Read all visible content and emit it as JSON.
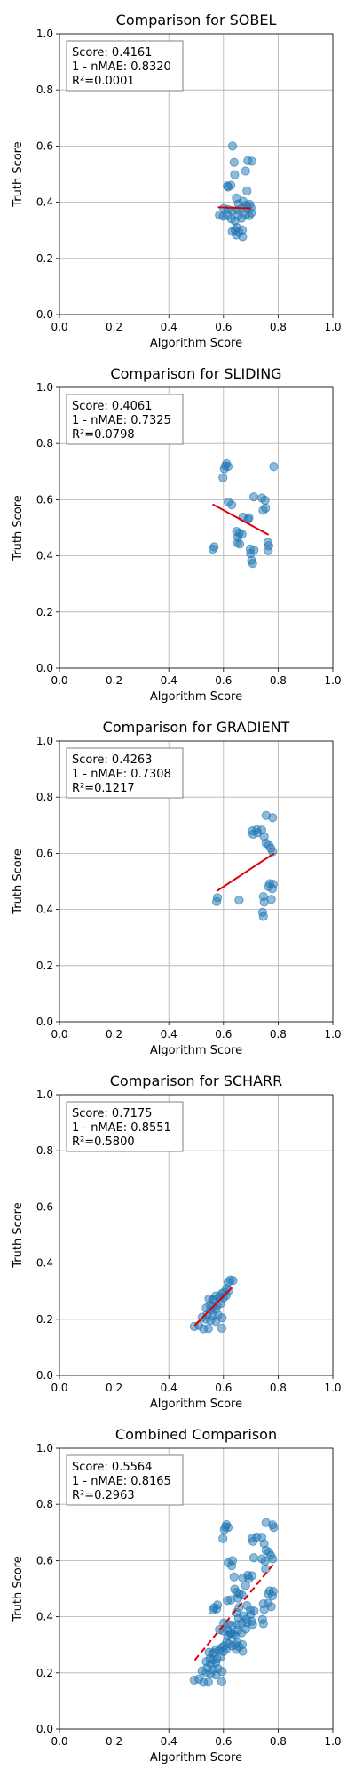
{
  "chart_data": [
    {
      "type": "scatter",
      "title": "Comparison for SOBEL",
      "xlabel": "Algorithm Score",
      "ylabel": "Truth Score",
      "xlim": [
        0,
        1
      ],
      "ylim": [
        0,
        1
      ],
      "xticks": [
        "0.0",
        "0.2",
        "0.4",
        "0.6",
        "0.8",
        "1.0"
      ],
      "yticks": [
        "0.0",
        "0.2",
        "0.4",
        "0.6",
        "0.8",
        "1.0"
      ],
      "grid": true,
      "stats": [
        "Score: 0.4161",
        "1 - nMAE: 0.8320",
        "R²=0.0001"
      ],
      "points": [
        [
          0.633,
          0.6
        ],
        [
          0.689,
          0.548
        ],
        [
          0.704,
          0.546
        ],
        [
          0.639,
          0.542
        ],
        [
          0.641,
          0.498
        ],
        [
          0.681,
          0.511
        ],
        [
          0.614,
          0.458
        ],
        [
          0.627,
          0.46
        ],
        [
          0.617,
          0.454
        ],
        [
          0.686,
          0.44
        ],
        [
          0.647,
          0.415
        ],
        [
          0.672,
          0.403
        ],
        [
          0.655,
          0.394
        ],
        [
          0.685,
          0.39
        ],
        [
          0.696,
          0.392
        ],
        [
          0.601,
          0.378
        ],
        [
          0.617,
          0.374
        ],
        [
          0.632,
          0.37
        ],
        [
          0.652,
          0.372
        ],
        [
          0.667,
          0.377
        ],
        [
          0.686,
          0.378
        ],
        [
          0.701,
          0.38
        ],
        [
          0.702,
          0.362
        ],
        [
          0.585,
          0.354
        ],
        [
          0.599,
          0.35
        ],
        [
          0.615,
          0.352
        ],
        [
          0.653,
          0.352
        ],
        [
          0.682,
          0.356
        ],
        [
          0.694,
          0.352
        ],
        [
          0.628,
          0.341
        ],
        [
          0.666,
          0.343
        ],
        [
          0.642,
          0.333
        ],
        [
          0.648,
          0.31
        ],
        [
          0.643,
          0.3
        ],
        [
          0.657,
          0.293
        ],
        [
          0.669,
          0.301
        ],
        [
          0.632,
          0.296
        ],
        [
          0.647,
          0.283
        ],
        [
          0.67,
          0.277
        ]
      ],
      "fit_line": {
        "x": [
          0.58,
          0.7
        ],
        "y": [
          0.382,
          0.378
        ],
        "style": "solid",
        "color": "#e00000"
      }
    },
    {
      "type": "scatter",
      "title": "Comparison for SLIDING",
      "xlabel": "Algorithm Score",
      "ylabel": "Truth Score",
      "xlim": [
        0,
        1
      ],
      "ylim": [
        0,
        1
      ],
      "xticks": [
        "0.0",
        "0.2",
        "0.4",
        "0.6",
        "0.8",
        "1.0"
      ],
      "yticks": [
        "0.0",
        "0.2",
        "0.4",
        "0.6",
        "0.8",
        "1.0"
      ],
      "grid": true,
      "stats": [
        "Score: 0.4061",
        "1 - nMAE: 0.7325",
        "R²=0.0798"
      ],
      "points": [
        [
          0.611,
          0.728
        ],
        [
          0.607,
          0.72
        ],
        [
          0.617,
          0.718
        ],
        [
          0.603,
          0.71
        ],
        [
          0.784,
          0.718
        ],
        [
          0.598,
          0.678
        ],
        [
          0.711,
          0.61
        ],
        [
          0.741,
          0.606
        ],
        [
          0.752,
          0.598
        ],
        [
          0.617,
          0.592
        ],
        [
          0.63,
          0.582
        ],
        [
          0.754,
          0.57
        ],
        [
          0.671,
          0.538
        ],
        [
          0.693,
          0.536
        ],
        [
          0.69,
          0.53
        ],
        [
          0.745,
          0.562
        ],
        [
          0.648,
          0.487
        ],
        [
          0.658,
          0.481
        ],
        [
          0.668,
          0.477
        ],
        [
          0.653,
          0.466
        ],
        [
          0.763,
          0.448
        ],
        [
          0.766,
          0.436
        ],
        [
          0.651,
          0.446
        ],
        [
          0.659,
          0.442
        ],
        [
          0.566,
          0.432
        ],
        [
          0.561,
          0.424
        ],
        [
          0.698,
          0.424
        ],
        [
          0.712,
          0.42
        ],
        [
          0.699,
          0.408
        ],
        [
          0.764,
          0.418
        ],
        [
          0.703,
          0.384
        ],
        [
          0.707,
          0.373
        ]
      ],
      "fit_line": {
        "x": [
          0.56,
          0.765
        ],
        "y": [
          0.584,
          0.475
        ],
        "style": "solid",
        "color": "#e00000"
      }
    },
    {
      "type": "scatter",
      "title": "Comparison for GRADIENT",
      "xlabel": "Algorithm Score",
      "ylabel": "Truth Score",
      "xlim": [
        0,
        1
      ],
      "ylim": [
        0,
        1
      ],
      "xticks": [
        "0.0",
        "0.2",
        "0.4",
        "0.6",
        "0.8",
        "1.0"
      ],
      "yticks": [
        "0.0",
        "0.2",
        "0.4",
        "0.6",
        "0.8",
        "1.0"
      ],
      "grid": true,
      "stats": [
        "Score: 0.4263",
        "1 - nMAE: 0.7308",
        "R²=0.1217"
      ],
      "points": [
        [
          0.756,
          0.735
        ],
        [
          0.78,
          0.727
        ],
        [
          0.706,
          0.68
        ],
        [
          0.722,
          0.684
        ],
        [
          0.74,
          0.683
        ],
        [
          0.708,
          0.668
        ],
        [
          0.725,
          0.673
        ],
        [
          0.749,
          0.66
        ],
        [
          0.756,
          0.636
        ],
        [
          0.766,
          0.63
        ],
        [
          0.773,
          0.618
        ],
        [
          0.78,
          0.606
        ],
        [
          0.769,
          0.492
        ],
        [
          0.782,
          0.49
        ],
        [
          0.765,
          0.481
        ],
        [
          0.779,
          0.474
        ],
        [
          0.746,
          0.446
        ],
        [
          0.775,
          0.436
        ],
        [
          0.578,
          0.442
        ],
        [
          0.575,
          0.428
        ],
        [
          0.657,
          0.433
        ],
        [
          0.749,
          0.426
        ],
        [
          0.743,
          0.39
        ],
        [
          0.746,
          0.375
        ]
      ],
      "fit_line": {
        "x": [
          0.575,
          0.785
        ],
        "y": [
          0.465,
          0.6
        ],
        "style": "solid",
        "color": "#e00000"
      }
    },
    {
      "type": "scatter",
      "title": "Comparison for SCHARR",
      "xlabel": "Algorithm Score",
      "ylabel": "Truth Score",
      "xlim": [
        0,
        1
      ],
      "ylim": [
        0,
        1
      ],
      "xticks": [
        "0.0",
        "0.2",
        "0.4",
        "0.6",
        "0.8",
        "1.0"
      ],
      "yticks": [
        "0.0",
        "0.2",
        "0.4",
        "0.6",
        "0.8",
        "1.0"
      ],
      "grid": true,
      "stats": [
        "Score: 0.7175",
        "1 - nMAE: 0.8551",
        "R²=0.5800"
      ],
      "points": [
        [
          0.625,
          0.34
        ],
        [
          0.617,
          0.332
        ],
        [
          0.635,
          0.338
        ],
        [
          0.612,
          0.31
        ],
        [
          0.62,
          0.303
        ],
        [
          0.602,
          0.296
        ],
        [
          0.593,
          0.29
        ],
        [
          0.572,
          0.283
        ],
        [
          0.585,
          0.28
        ],
        [
          0.565,
          0.272
        ],
        [
          0.56,
          0.268
        ],
        [
          0.547,
          0.273
        ],
        [
          0.6,
          0.276
        ],
        [
          0.61,
          0.284
        ],
        [
          0.551,
          0.25
        ],
        [
          0.562,
          0.246
        ],
        [
          0.577,
          0.249
        ],
        [
          0.59,
          0.256
        ],
        [
          0.537,
          0.24
        ],
        [
          0.553,
          0.232
        ],
        [
          0.572,
          0.236
        ],
        [
          0.541,
          0.218
        ],
        [
          0.562,
          0.212
        ],
        [
          0.58,
          0.215
        ],
        [
          0.522,
          0.207
        ],
        [
          0.537,
          0.2
        ],
        [
          0.553,
          0.196
        ],
        [
          0.572,
          0.192
        ],
        [
          0.595,
          0.205
        ],
        [
          0.51,
          0.178
        ],
        [
          0.493,
          0.174
        ],
        [
          0.527,
          0.166
        ],
        [
          0.545,
          0.167
        ],
        [
          0.594,
          0.168
        ]
      ],
      "fit_line": {
        "x": [
          0.495,
          0.63
        ],
        "y": [
          0.178,
          0.312
        ],
        "style": "solid",
        "color": "#e00000"
      }
    },
    {
      "type": "scatter",
      "title": "Combined Comparison",
      "xlabel": "Algorithm Score",
      "ylabel": "Truth Score",
      "xlim": [
        0,
        1
      ],
      "ylim": [
        0,
        1
      ],
      "xticks": [
        "0.0",
        "0.2",
        "0.4",
        "0.6",
        "0.8",
        "1.0"
      ],
      "yticks": [
        "0.0",
        "0.2",
        "0.4",
        "0.6",
        "0.8",
        "1.0"
      ],
      "grid": true,
      "stats": [
        "Score: 0.5564",
        "1 - nMAE: 0.8165",
        "R²=0.2963"
      ],
      "points": [
        [
          0.611,
          0.728
        ],
        [
          0.607,
          0.72
        ],
        [
          0.617,
          0.718
        ],
        [
          0.603,
          0.71
        ],
        [
          0.784,
          0.718
        ],
        [
          0.756,
          0.735
        ],
        [
          0.78,
          0.727
        ],
        [
          0.706,
          0.68
        ],
        [
          0.722,
          0.684
        ],
        [
          0.74,
          0.683
        ],
        [
          0.708,
          0.668
        ],
        [
          0.598,
          0.678
        ],
        [
          0.749,
          0.66
        ],
        [
          0.756,
          0.636
        ],
        [
          0.766,
          0.63
        ],
        [
          0.773,
          0.618
        ],
        [
          0.78,
          0.606
        ],
        [
          0.711,
          0.61
        ],
        [
          0.741,
          0.606
        ],
        [
          0.752,
          0.598
        ],
        [
          0.617,
          0.592
        ],
        [
          0.63,
          0.582
        ],
        [
          0.754,
          0.57
        ],
        [
          0.633,
          0.6
        ],
        [
          0.671,
          0.538
        ],
        [
          0.693,
          0.536
        ],
        [
          0.689,
          0.548
        ],
        [
          0.704,
          0.546
        ],
        [
          0.639,
          0.542
        ],
        [
          0.641,
          0.498
        ],
        [
          0.681,
          0.511
        ],
        [
          0.769,
          0.492
        ],
        [
          0.782,
          0.49
        ],
        [
          0.765,
          0.481
        ],
        [
          0.779,
          0.474
        ],
        [
          0.648,
          0.487
        ],
        [
          0.658,
          0.481
        ],
        [
          0.668,
          0.477
        ],
        [
          0.653,
          0.466
        ],
        [
          0.614,
          0.458
        ],
        [
          0.627,
          0.46
        ],
        [
          0.746,
          0.446
        ],
        [
          0.775,
          0.436
        ],
        [
          0.763,
          0.448
        ],
        [
          0.578,
          0.442
        ],
        [
          0.575,
          0.428
        ],
        [
          0.566,
          0.432
        ],
        [
          0.561,
          0.424
        ],
        [
          0.657,
          0.433
        ],
        [
          0.698,
          0.424
        ],
        [
          0.712,
          0.42
        ],
        [
          0.749,
          0.426
        ],
        [
          0.686,
          0.44
        ],
        [
          0.647,
          0.415
        ],
        [
          0.672,
          0.403
        ],
        [
          0.699,
          0.408
        ],
        [
          0.743,
          0.39
        ],
        [
          0.746,
          0.375
        ],
        [
          0.703,
          0.384
        ],
        [
          0.707,
          0.373
        ],
        [
          0.655,
          0.394
        ],
        [
          0.685,
          0.39
        ],
        [
          0.601,
          0.378
        ],
        [
          0.617,
          0.374
        ],
        [
          0.632,
          0.37
        ],
        [
          0.652,
          0.372
        ],
        [
          0.667,
          0.377
        ],
        [
          0.686,
          0.378
        ],
        [
          0.585,
          0.354
        ],
        [
          0.599,
          0.35
        ],
        [
          0.615,
          0.352
        ],
        [
          0.653,
          0.352
        ],
        [
          0.682,
          0.356
        ],
        [
          0.628,
          0.341
        ],
        [
          0.666,
          0.343
        ],
        [
          0.625,
          0.34
        ],
        [
          0.617,
          0.332
        ],
        [
          0.635,
          0.338
        ],
        [
          0.642,
          0.333
        ],
        [
          0.648,
          0.31
        ],
        [
          0.643,
          0.3
        ],
        [
          0.657,
          0.293
        ],
        [
          0.669,
          0.301
        ],
        [
          0.632,
          0.296
        ],
        [
          0.612,
          0.31
        ],
        [
          0.62,
          0.303
        ],
        [
          0.602,
          0.296
        ],
        [
          0.593,
          0.29
        ],
        [
          0.572,
          0.283
        ],
        [
          0.585,
          0.28
        ],
        [
          0.565,
          0.272
        ],
        [
          0.56,
          0.268
        ],
        [
          0.547,
          0.273
        ],
        [
          0.6,
          0.276
        ],
        [
          0.61,
          0.284
        ],
        [
          0.647,
          0.283
        ],
        [
          0.67,
          0.277
        ],
        [
          0.551,
          0.25
        ],
        [
          0.562,
          0.246
        ],
        [
          0.577,
          0.249
        ],
        [
          0.59,
          0.256
        ],
        [
          0.537,
          0.24
        ],
        [
          0.553,
          0.232
        ],
        [
          0.572,
          0.236
        ],
        [
          0.541,
          0.218
        ],
        [
          0.562,
          0.212
        ],
        [
          0.58,
          0.215
        ],
        [
          0.522,
          0.207
        ],
        [
          0.537,
          0.2
        ],
        [
          0.553,
          0.196
        ],
        [
          0.572,
          0.192
        ],
        [
          0.595,
          0.205
        ],
        [
          0.51,
          0.178
        ],
        [
          0.493,
          0.174
        ],
        [
          0.527,
          0.166
        ],
        [
          0.545,
          0.167
        ],
        [
          0.594,
          0.168
        ]
      ],
      "fit_line": {
        "x": [
          0.495,
          0.785
        ],
        "y": [
          0.245,
          0.59
        ],
        "style": "dashed",
        "color": "#e00000"
      }
    }
  ]
}
